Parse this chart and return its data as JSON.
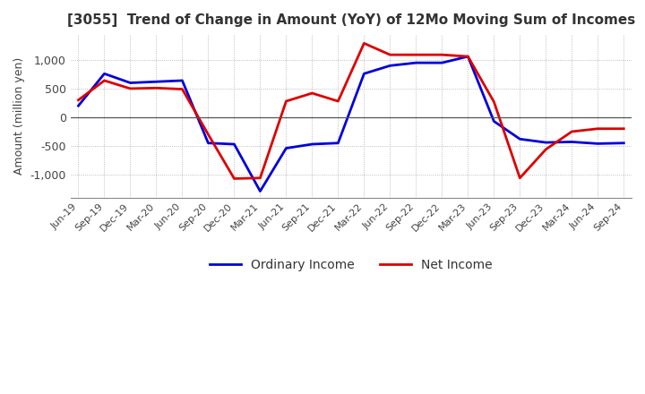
{
  "title": "[3055]  Trend of Change in Amount (YoY) of 12Mo Moving Sum of Incomes",
  "ylabel": "Amount (million yen)",
  "background_color": "#ffffff",
  "grid_color": "#aaaaaa",
  "x_labels": [
    "Jun-19",
    "Sep-19",
    "Dec-19",
    "Mar-20",
    "Jun-20",
    "Sep-20",
    "Dec-20",
    "Mar-21",
    "Jun-21",
    "Sep-21",
    "Dec-21",
    "Mar-22",
    "Jun-22",
    "Sep-22",
    "Dec-22",
    "Mar-23",
    "Jun-23",
    "Sep-23",
    "Dec-23",
    "Mar-24",
    "Jun-24",
    "Sep-24"
  ],
  "ordinary_income": [
    200,
    760,
    600,
    620,
    640,
    -450,
    -470,
    -1290,
    -540,
    -470,
    -450,
    760,
    900,
    950,
    950,
    1060,
    -70,
    -380,
    -440,
    -430,
    -460,
    -450
  ],
  "net_income": [
    300,
    640,
    500,
    510,
    490,
    -300,
    -1070,
    -1060,
    280,
    420,
    280,
    1290,
    1090,
    1090,
    1090,
    1060,
    270,
    -1060,
    -560,
    -250,
    -200,
    -200
  ],
  "ylim": [
    -1400,
    1450
  ],
  "yticks": [
    -1000,
    -500,
    0,
    500,
    1000
  ],
  "line_color_ordinary": "#0000dd",
  "line_color_net": "#dd0000",
  "legend_ordinary": "Ordinary Income",
  "legend_net": "Net Income",
  "linewidth": 2.0
}
